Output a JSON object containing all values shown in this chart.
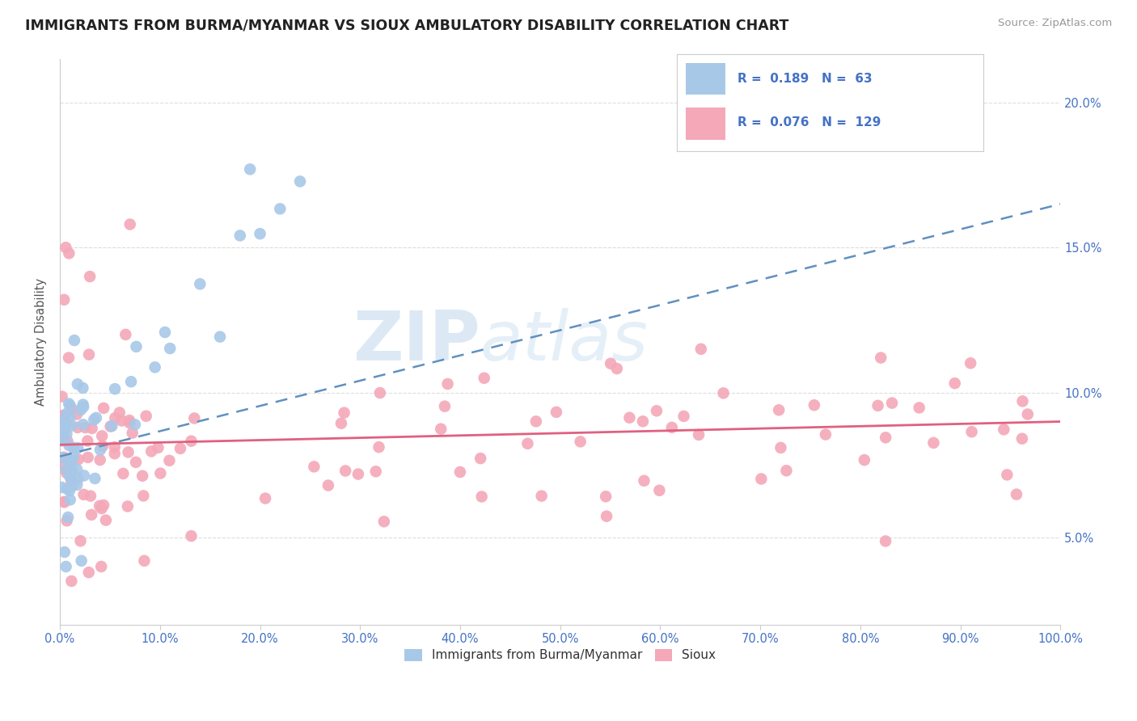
{
  "title": "IMMIGRANTS FROM BURMA/MYANMAR VS SIOUX AMBULATORY DISABILITY CORRELATION CHART",
  "source": "Source: ZipAtlas.com",
  "ylabel": "Ambulatory Disability",
  "watermark_zip": "ZIP",
  "watermark_atlas": "atlas",
  "series1_label": "Immigrants from Burma/Myanmar",
  "series2_label": "Sioux",
  "series1_R": 0.189,
  "series1_N": 63,
  "series2_R": 0.076,
  "series2_N": 129,
  "series1_color": "#a8c8e8",
  "series2_color": "#f4a8b8",
  "trend1_color": "#6090c0",
  "trend2_color": "#e06080",
  "xlim": [
    0,
    100
  ],
  "ylim": [
    2.0,
    21.5
  ],
  "yticks": [
    5.0,
    10.0,
    15.0,
    20.0
  ],
  "title_color": "#222222",
  "axis_tick_color": "#4472c4",
  "background_color": "#ffffff",
  "grid_color": "#dddddd",
  "trend1_start_y": 7.8,
  "trend1_end_y": 16.5,
  "trend2_start_y": 8.2,
  "trend2_end_y": 9.0
}
